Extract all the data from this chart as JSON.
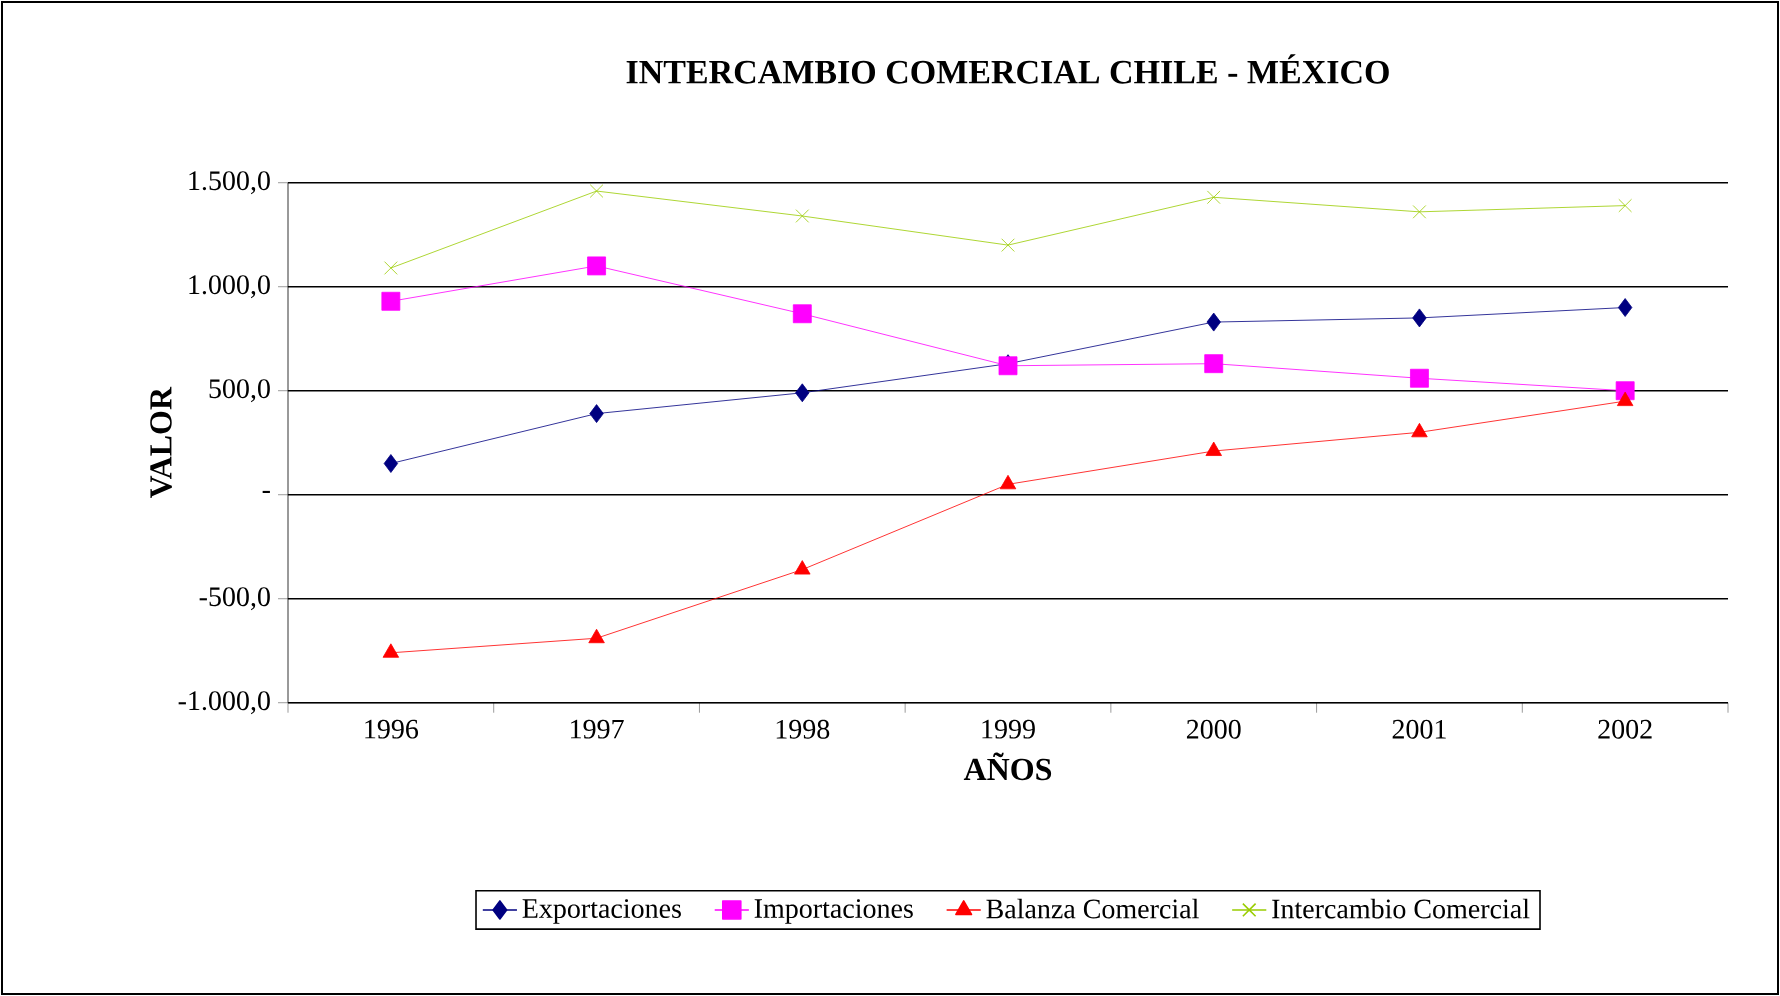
{
  "chart_data": {
    "type": "line",
    "title": "INTERCAMBIO COMERCIAL CHILE - MÉXICO",
    "xlabel": "AÑOS",
    "ylabel": "VALOR",
    "categories": [
      "1996",
      "1997",
      "1998",
      "1999",
      "2000",
      "2001",
      "2002"
    ],
    "series": [
      {
        "name": "Exportaciones",
        "color": "#000080",
        "marker": "diamond",
        "values": [
          150,
          390,
          490,
          630,
          830,
          850,
          900
        ]
      },
      {
        "name": "Importaciones",
        "color": "#ff00ff",
        "marker": "square",
        "values": [
          930,
          1100,
          870,
          620,
          630,
          560,
          500
        ]
      },
      {
        "name": "Balanza Comercial",
        "color": "#ff0000",
        "marker": "triangle",
        "values": [
          -760,
          -690,
          -360,
          50,
          210,
          300,
          450
        ]
      },
      {
        "name": "Intercambio Comercial",
        "color": "#99cc00",
        "marker": "cross",
        "values": [
          1090,
          1460,
          1340,
          1200,
          1430,
          1360,
          1390
        ]
      }
    ],
    "ylim": [
      -1000,
      1500
    ],
    "yticks": [
      {
        "value": -1000,
        "label": "-1.000,0"
      },
      {
        "value": -500,
        "label": "-500,0"
      },
      {
        "value": 0,
        "label": "-"
      },
      {
        "value": 500,
        "label": "500,0"
      },
      {
        "value": 1000,
        "label": "1.000,0"
      },
      {
        "value": 1500,
        "label": "1.500,0"
      }
    ],
    "grid": "y",
    "legend": "bottom"
  }
}
